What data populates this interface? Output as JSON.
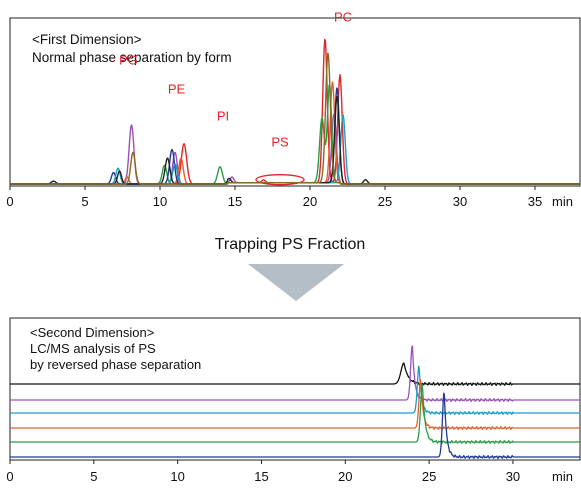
{
  "figure": {
    "arrow_caption": "Trapping PS Fraction",
    "arrow_color": "#b3bec6"
  },
  "chart_data": [
    {
      "type": "line",
      "panel": "first-dimension",
      "title": "<First Dimension>",
      "subtitle": "Normal phase separation by form",
      "xlabel": "min",
      "xlim": [
        0,
        38
      ],
      "xticks": [
        0,
        5,
        10,
        15,
        20,
        25,
        30,
        35
      ],
      "tick_labels": [
        "0",
        "5",
        "10",
        "15",
        "20",
        "25",
        "30",
        "35"
      ],
      "ylim": [
        0,
        100
      ],
      "grid": false,
      "label_color": "#e0262a",
      "peak_labels": [
        {
          "text": "PG",
          "x": 7.9,
          "y": 83
        },
        {
          "text": "PE",
          "x": 11.1,
          "y": 63
        },
        {
          "text": "PI",
          "x": 14.2,
          "y": 44
        },
        {
          "text": "PS",
          "x": 18.0,
          "y": 26
        },
        {
          "text": "PC",
          "x": 22.2,
          "y": 113
        }
      ],
      "highlight": {
        "label": "PS",
        "x_center": 18.0,
        "x_halfwidth": 1.6,
        "y": 3
      },
      "series": [
        {
          "color": "#e0262a",
          "peaks": [
            [
              11.6,
              28,
              0.18
            ],
            [
              16.9,
              2,
              0.12
            ],
            [
              21.0,
              100,
              0.15
            ],
            [
              22.0,
              75,
              0.15
            ]
          ]
        },
        {
          "color": "#9a52b8",
          "peaks": [
            [
              8.1,
              41,
              0.16
            ],
            [
              11.0,
              22,
              0.15
            ],
            [
              14.8,
              4,
              0.12
            ],
            [
              21.6,
              48,
              0.15
            ]
          ]
        },
        {
          "color": "#2a9d49",
          "peaks": [
            [
              10.3,
              13,
              0.15
            ],
            [
              14.0,
              12,
              0.16
            ],
            [
              20.8,
              45,
              0.16
            ],
            [
              21.3,
              68,
              0.14
            ]
          ]
        },
        {
          "color": "#e0622a",
          "peaks": [
            [
              7.8,
              5,
              0.12
            ],
            [
              11.4,
              18,
              0.15
            ],
            [
              21.5,
              70,
              0.15
            ]
          ]
        },
        {
          "color": "#1f3a93",
          "peaks": [
            [
              6.9,
              8,
              0.14
            ],
            [
              10.8,
              24,
              0.16
            ],
            [
              21.8,
              66,
              0.15
            ]
          ]
        },
        {
          "color": "#1a9fc8",
          "peaks": [
            [
              7.2,
              11,
              0.14
            ],
            [
              11.0,
              14,
              0.15
            ],
            [
              22.2,
              48,
              0.15
            ]
          ]
        },
        {
          "color": "#222222",
          "peaks": [
            [
              2.9,
              2,
              0.15
            ],
            [
              7.3,
              9,
              0.13
            ],
            [
              10.5,
              18,
              0.16
            ],
            [
              14.6,
              3,
              0.12
            ],
            [
              21.8,
              60,
              0.15
            ],
            [
              23.7,
              3,
              0.13
            ]
          ]
        },
        {
          "color": "#8b6a1f",
          "peaks": [
            [
              8.2,
              22,
              0.15
            ],
            [
              21.2,
              90,
              0.16
            ]
          ]
        }
      ]
    },
    {
      "type": "line",
      "panel": "second-dimension",
      "title": "<Second Dimension>",
      "subtitle_lines": [
        "LC/MS analysis of PS",
        "by reversed phase separation"
      ],
      "xlabel": "min",
      "xlim": [
        0,
        34
      ],
      "xticks": [
        0,
        5,
        10,
        15,
        20,
        25,
        30
      ],
      "tick_labels": [
        "0",
        "5",
        "10",
        "15",
        "20",
        "25",
        "30"
      ],
      "stacked": true,
      "grid": false,
      "series": [
        {
          "color": "#111111",
          "peak_time": 23.5,
          "peak_height": 28,
          "width": 0.18
        },
        {
          "color": "#9a52b8",
          "peak_time": 24.0,
          "peak_height": 74,
          "width": 0.1
        },
        {
          "color": "#1a9fc8",
          "peak_time": 24.4,
          "peak_height": 64,
          "width": 0.1
        },
        {
          "color": "#e0622a",
          "peak_time": 24.5,
          "peak_height": 66,
          "width": 0.1
        },
        {
          "color": "#2a9d49",
          "peak_time": 24.6,
          "peak_height": 78,
          "width": 0.11
        },
        {
          "color": "#1f3a93",
          "peak_time": 25.9,
          "peak_height": 88,
          "width": 0.1
        }
      ]
    }
  ]
}
